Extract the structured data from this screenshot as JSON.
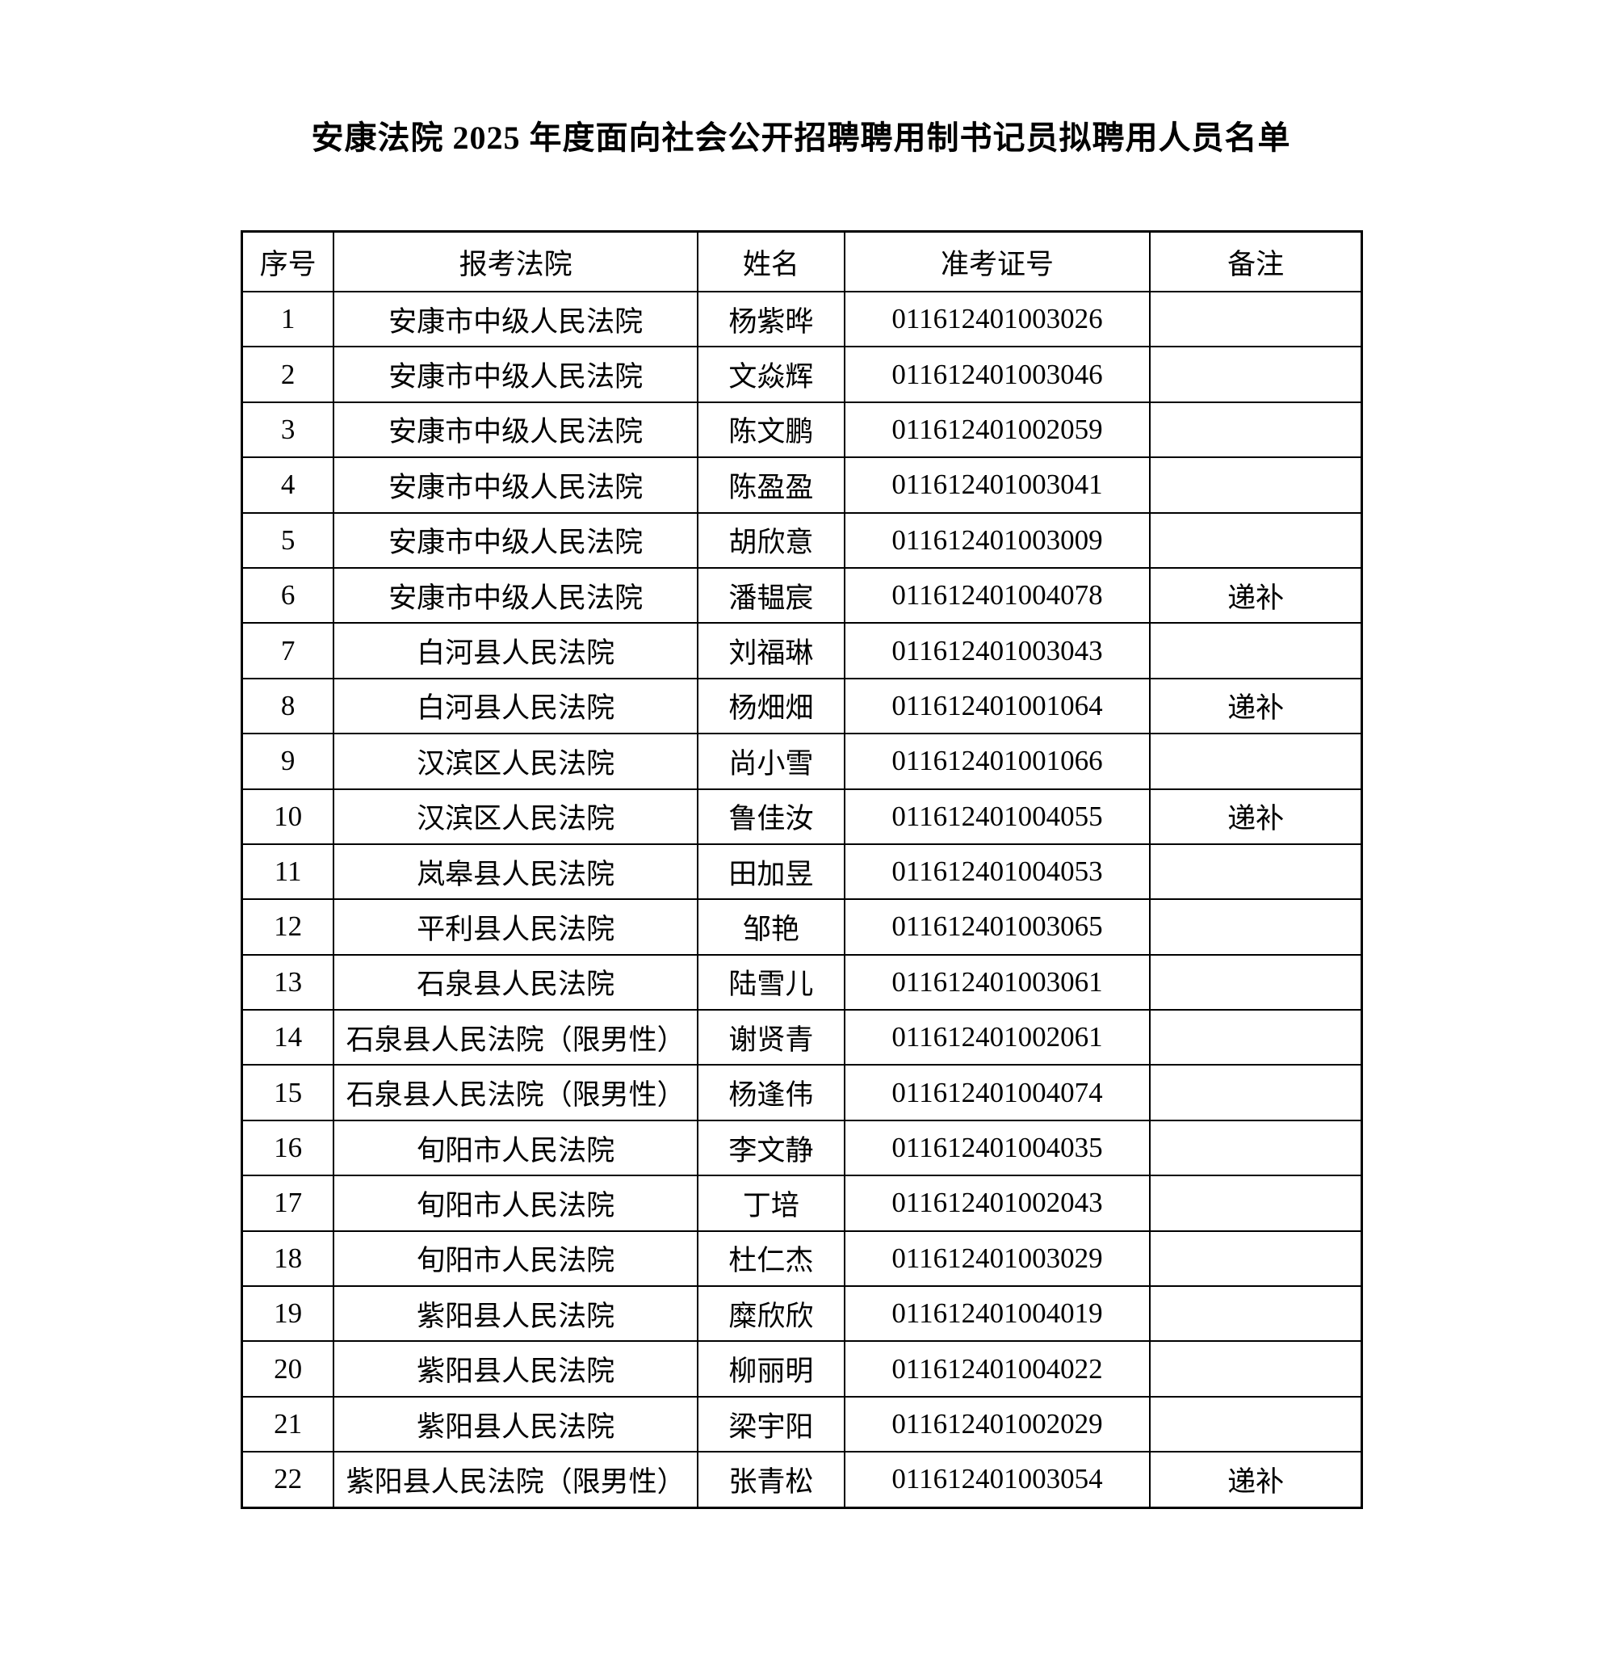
{
  "title": "安康法院 2025 年度面向社会公开招聘聘用制书记员拟聘用人员名单",
  "table": {
    "headers": [
      "序号",
      "报考法院",
      "姓名",
      "准考证号",
      "备注"
    ],
    "rows": [
      {
        "no": "1",
        "court": "安康市中级人民法院",
        "name": "杨紫晔",
        "ticket": "011612401003026",
        "remark": ""
      },
      {
        "no": "2",
        "court": "安康市中级人民法院",
        "name": "文焱辉",
        "ticket": "011612401003046",
        "remark": ""
      },
      {
        "no": "3",
        "court": "安康市中级人民法院",
        "name": "陈文鹏",
        "ticket": "011612401002059",
        "remark": ""
      },
      {
        "no": "4",
        "court": "安康市中级人民法院",
        "name": "陈盈盈",
        "ticket": "011612401003041",
        "remark": ""
      },
      {
        "no": "5",
        "court": "安康市中级人民法院",
        "name": "胡欣意",
        "ticket": "011612401003009",
        "remark": ""
      },
      {
        "no": "6",
        "court": "安康市中级人民法院",
        "name": "潘韫宸",
        "ticket": "011612401004078",
        "remark": "递补"
      },
      {
        "no": "7",
        "court": "白河县人民法院",
        "name": "刘福琳",
        "ticket": "011612401003043",
        "remark": ""
      },
      {
        "no": "8",
        "court": "白河县人民法院",
        "name": "杨畑畑",
        "ticket": "011612401001064",
        "remark": "递补"
      },
      {
        "no": "9",
        "court": "汉滨区人民法院",
        "name": "尚小雪",
        "ticket": "011612401001066",
        "remark": ""
      },
      {
        "no": "10",
        "court": "汉滨区人民法院",
        "name": "鲁佳汝",
        "ticket": "011612401004055",
        "remark": "递补"
      },
      {
        "no": "11",
        "court": "岚皋县人民法院",
        "name": "田加昱",
        "ticket": "011612401004053",
        "remark": ""
      },
      {
        "no": "12",
        "court": "平利县人民法院",
        "name": "邹艳",
        "ticket": "011612401003065",
        "remark": ""
      },
      {
        "no": "13",
        "court": "石泉县人民法院",
        "name": "陆雪儿",
        "ticket": "011612401003061",
        "remark": ""
      },
      {
        "no": "14",
        "court": "石泉县人民法院（限男性）",
        "name": "谢贤青",
        "ticket": "011612401002061",
        "remark": ""
      },
      {
        "no": "15",
        "court": "石泉县人民法院（限男性）",
        "name": "杨逢伟",
        "ticket": "011612401004074",
        "remark": ""
      },
      {
        "no": "16",
        "court": "旬阳市人民法院",
        "name": "李文静",
        "ticket": "011612401004035",
        "remark": ""
      },
      {
        "no": "17",
        "court": "旬阳市人民法院",
        "name": "丁培",
        "ticket": "011612401002043",
        "remark": ""
      },
      {
        "no": "18",
        "court": "旬阳市人民法院",
        "name": "杜仁杰",
        "ticket": "011612401003029",
        "remark": ""
      },
      {
        "no": "19",
        "court": "紫阳县人民法院",
        "name": "糜欣欣",
        "ticket": "011612401004019",
        "remark": ""
      },
      {
        "no": "20",
        "court": "紫阳县人民法院",
        "name": "柳丽明",
        "ticket": "011612401004022",
        "remark": ""
      },
      {
        "no": "21",
        "court": "紫阳县人民法院",
        "name": "梁宇阳",
        "ticket": "011612401002029",
        "remark": ""
      },
      {
        "no": "22",
        "court": "紫阳县人民法院（限男性）",
        "name": "张青松",
        "ticket": "011612401003054",
        "remark": "递补"
      }
    ]
  }
}
